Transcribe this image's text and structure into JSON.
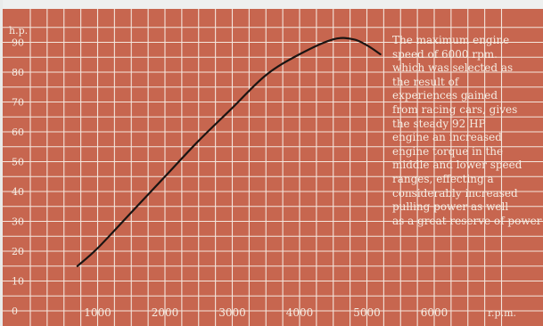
{
  "chart_data": {
    "type": "line",
    "xlabel": "r.p.m.",
    "ylabel": "h.p.",
    "x_ticks": [
      1000,
      2000,
      3000,
      4000,
      5000,
      6000
    ],
    "y_ticks": [
      0,
      10,
      20,
      30,
      40,
      50,
      60,
      70,
      80,
      90
    ],
    "xlim": [
      0,
      7150
    ],
    "ylim": [
      0,
      97
    ],
    "grid": true,
    "series": [
      {
        "x": [
          700,
          1000,
          1500,
          2000,
          2500,
          3000,
          3500,
          4000,
          4500,
          4800,
          5000,
          5200
        ],
        "y": [
          15,
          21,
          33,
          45,
          57,
          68,
          79,
          86,
          91,
          91,
          89,
          86
        ]
      }
    ],
    "annotation": "The maximum engine\nspeed of 6000 rpm.\nwhich was selected as\nthe result of\nexperiences gained\nfrom racing cars, gives\nthe steady 92 HP\nengine an increased\nengine torque in the\nmiddle and lower speed\nranges, effecting a\nconsiderably increased\npulling power as well\nas a great reserve of power"
  },
  "colors": {
    "background": "#c7664f",
    "grid": "#f4e6dd",
    "curve": "#1a1412",
    "labels": "#f5ece2"
  }
}
